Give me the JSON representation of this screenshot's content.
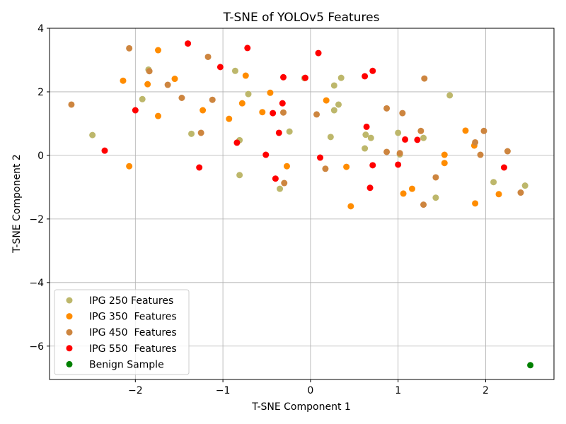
{
  "chart_data": {
    "type": "scatter",
    "title": "T-SNE of YOLOv5 Features",
    "xlabel": "T-SNE Component 1",
    "ylabel": "T-SNE Component 2",
    "xlim": [
      -2.98,
      2.78
    ],
    "ylim": [
      -7.05,
      4.0
    ],
    "x_ticks": [
      -2,
      -1,
      0,
      1,
      2
    ],
    "y_ticks": [
      -6,
      -4,
      -2,
      0,
      2,
      4
    ],
    "x_tick_labels": [
      "−2",
      "−1",
      "0",
      "1",
      "2"
    ],
    "y_tick_labels": [
      "−6",
      "−4",
      "−2",
      "0",
      "2",
      "4"
    ],
    "grid": true,
    "legend_position": "lower-left",
    "series": [
      {
        "name": "IPG 250 Features",
        "color": "#bdb76b",
        "points": [
          [
            -1.85,
            2.7
          ],
          [
            -1.92,
            1.77
          ],
          [
            -2.49,
            0.64
          ],
          [
            -1.36,
            0.68
          ],
          [
            -0.86,
            2.66
          ],
          [
            -0.71,
            1.93
          ],
          [
            -0.81,
            0.48
          ],
          [
            -0.81,
            -0.62
          ],
          [
            -0.24,
            0.75
          ],
          [
            -0.35,
            -1.05
          ],
          [
            -0.07,
            2.43
          ],
          [
            0.35,
            2.44
          ],
          [
            0.27,
            2.2
          ],
          [
            0.32,
            1.6
          ],
          [
            0.27,
            1.42
          ],
          [
            0.23,
            0.58
          ],
          [
            0.62,
            0.22
          ],
          [
            0.63,
            0.65
          ],
          [
            0.69,
            0.55
          ],
          [
            1.0,
            0.71
          ],
          [
            1.02,
            0.03
          ],
          [
            1.29,
            0.55
          ],
          [
            1.43,
            -1.33
          ],
          [
            1.59,
            1.89
          ],
          [
            2.09,
            -0.84
          ],
          [
            2.45,
            -0.95
          ]
        ]
      },
      {
        "name": "IPG 350  Features",
        "color": "#ff8c00",
        "points": [
          [
            -2.14,
            2.35
          ],
          [
            -1.74,
            3.31
          ],
          [
            -1.86,
            2.24
          ],
          [
            -1.55,
            2.41
          ],
          [
            -1.74,
            1.24
          ],
          [
            -1.23,
            1.42
          ],
          [
            -0.93,
            1.15
          ],
          [
            -0.78,
            1.64
          ],
          [
            -0.74,
            2.51
          ],
          [
            -0.55,
            1.36
          ],
          [
            -0.46,
            1.97
          ],
          [
            -0.27,
            -0.34
          ],
          [
            -2.07,
            -0.34
          ],
          [
            0.18,
            1.73
          ],
          [
            0.41,
            -0.36
          ],
          [
            0.46,
            -1.6
          ],
          [
            1.06,
            -1.2
          ],
          [
            1.16,
            -1.05
          ],
          [
            1.53,
            0.02
          ],
          [
            1.53,
            -0.24
          ],
          [
            1.77,
            0.78
          ],
          [
            1.87,
            0.31
          ],
          [
            1.88,
            -1.51
          ],
          [
            2.15,
            -1.22
          ]
        ]
      },
      {
        "name": "IPG 450  Features",
        "color": "#cd853f",
        "points": [
          [
            -2.07,
            3.37
          ],
          [
            -2.73,
            1.6
          ],
          [
            -1.84,
            2.65
          ],
          [
            -1.63,
            2.22
          ],
          [
            -1.47,
            1.81
          ],
          [
            -1.17,
            3.1
          ],
          [
            -1.12,
            1.75
          ],
          [
            -1.25,
            0.71
          ],
          [
            -0.31,
            1.35
          ],
          [
            -0.3,
            -0.87
          ],
          [
            0.07,
            1.29
          ],
          [
            0.17,
            -0.42
          ],
          [
            0.87,
            1.48
          ],
          [
            0.87,
            0.11
          ],
          [
            1.02,
            0.07
          ],
          [
            1.05,
            1.33
          ],
          [
            1.26,
            0.77
          ],
          [
            1.3,
            2.42
          ],
          [
            1.29,
            -1.55
          ],
          [
            1.43,
            -0.69
          ],
          [
            1.88,
            0.41
          ],
          [
            1.94,
            0.02
          ],
          [
            1.98,
            0.77
          ],
          [
            2.25,
            0.13
          ],
          [
            2.4,
            -1.17
          ]
        ]
      },
      {
        "name": "IPG 550  Features",
        "color": "#ff0000",
        "points": [
          [
            -2.0,
            1.42
          ],
          [
            -1.4,
            3.52
          ],
          [
            -1.03,
            2.78
          ],
          [
            -0.72,
            3.38
          ],
          [
            -2.35,
            0.15
          ],
          [
            -1.27,
            -0.38
          ],
          [
            -0.84,
            0.4
          ],
          [
            -0.51,
            0.02
          ],
          [
            -0.43,
            1.33
          ],
          [
            -0.36,
            0.71
          ],
          [
            -0.32,
            1.64
          ],
          [
            -0.31,
            2.46
          ],
          [
            -0.4,
            -0.73
          ],
          [
            -0.06,
            2.44
          ],
          [
            0.09,
            3.22
          ],
          [
            0.11,
            -0.07
          ],
          [
            0.62,
            2.49
          ],
          [
            0.64,
            0.9
          ],
          [
            0.71,
            2.66
          ],
          [
            0.71,
            -0.31
          ],
          [
            0.68,
            -1.02
          ],
          [
            1.0,
            -0.29
          ],
          [
            1.08,
            0.5
          ],
          [
            1.22,
            0.49
          ],
          [
            2.21,
            -0.38
          ]
        ]
      },
      {
        "name": "Benign Sample",
        "color": "#008000",
        "points": [
          [
            2.51,
            -6.6
          ]
        ]
      }
    ]
  }
}
